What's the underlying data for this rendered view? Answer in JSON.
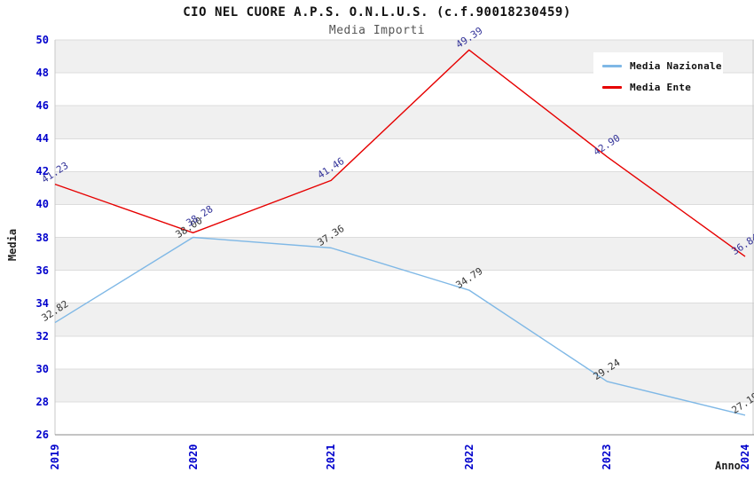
{
  "chart_data": {
    "type": "line",
    "title": "CIO NEL CUORE A.P.S. O.N.L.U.S. (c.f.90018230459)",
    "subtitle": "Media Importi",
    "xlabel": "Anno",
    "ylabel": "Media",
    "categories": [
      "2019",
      "2020",
      "2021",
      "2022",
      "2023",
      "2024"
    ],
    "series": [
      {
        "name": "Media Nazionale",
        "color": "#7FB8E6",
        "label_color": "#333333",
        "values": [
          32.82,
          38.0,
          37.36,
          34.79,
          29.24,
          27.19
        ]
      },
      {
        "name": "Media Ente",
        "color": "#E60000",
        "label_color": "#333399",
        "values": [
          41.23,
          38.28,
          41.46,
          49.39,
          42.9,
          36.84
        ]
      }
    ],
    "ylim": [
      26,
      50
    ],
    "yticks": [
      26,
      28,
      30,
      32,
      34,
      36,
      38,
      40,
      42,
      44,
      46,
      48,
      50
    ],
    "grid": "horizontal",
    "band_colors": [
      "#F0F0F0",
      "#FFFFFF"
    ],
    "gridline_color": "#DCDCDC",
    "axis_tick_color": "#0000CC",
    "legend_position": "top-right",
    "legend_background": "#FFFFFF"
  }
}
